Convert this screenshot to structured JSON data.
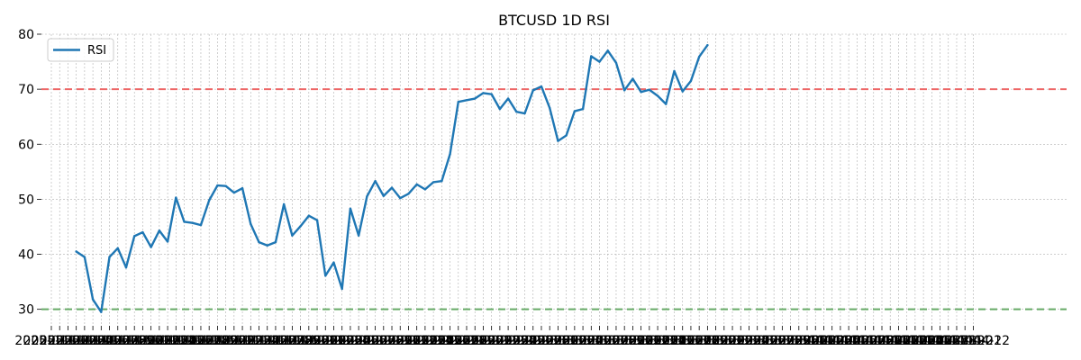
{
  "chart_data": {
    "type": "line",
    "title": "BTCUSD 1D RSI",
    "xlabel": "",
    "ylabel": "",
    "ylim": [
      27,
      80
    ],
    "yticks": [
      30,
      40,
      50,
      60,
      70,
      80
    ],
    "x_tick_labels": [
      "2025-01-01",
      "2025-01-02",
      "2025-01-03",
      "2025-01-04",
      "2025-01-05",
      "2025-01-06",
      "2025-01-07",
      "2025-01-08",
      "2025-01-09",
      "2025-01-10",
      "2025-01-11",
      "2025-01-12",
      "2025-01-13",
      "2025-01-14",
      "2025-01-15",
      "2025-01-16",
      "2025-01-17",
      "2025-01-18",
      "2025-01-19",
      "2025-01-20",
      "2025-01-21",
      "2025-01-22",
      "2025-01-23",
      "2025-01-24",
      "2025-01-25",
      "2025-01-26",
      "2025-01-27",
      "2025-01-28",
      "2025-01-29",
      "2025-01-30",
      "2025-01-31",
      "2025-02-01",
      "2025-02-02",
      "2025-02-03",
      "2025-02-04",
      "2025-02-05",
      "2025-02-06",
      "2025-02-07",
      "2025-02-08",
      "2025-02-09",
      "2025-02-10",
      "2025-02-11",
      "2025-02-12",
      "2025-02-13",
      "2025-02-14",
      "2025-02-15",
      "2025-02-16",
      "2025-02-17",
      "2025-02-18",
      "2025-02-19",
      "2025-02-20",
      "2025-02-21",
      "2025-02-22",
      "2025-02-23",
      "2025-02-24",
      "2025-02-25",
      "2025-02-26",
      "2025-02-27",
      "2025-02-28",
      "2025-03-01",
      "2025-03-02",
      "2025-03-03",
      "2025-03-04",
      "2025-03-05",
      "2025-03-06",
      "2025-03-07",
      "2025-03-08",
      "2025-03-09",
      "2025-03-10",
      "2025-03-11",
      "2025-03-12",
      "2025-03-13",
      "2025-03-14",
      "2025-03-15",
      "2025-03-16",
      "2025-03-17",
      "2025-03-18",
      "2025-03-19",
      "2025-03-20",
      "2025-03-21",
      "2025-03-22",
      "2025-03-23",
      "2025-03-24",
      "2025-03-25",
      "2025-03-26",
      "2025-03-27",
      "2025-03-28",
      "2025-03-29",
      "2025-03-30",
      "2025-03-31",
      "2025-04-01",
      "2025-04-02",
      "2025-04-03",
      "2025-04-04",
      "2025-04-05",
      "2025-04-06",
      "2025-04-07",
      "2025-04-08",
      "2025-04-09",
      "2025-04-10",
      "2025-04-11",
      "2025-04-12",
      "2025-04-13",
      "2025-04-14",
      "2025-04-15",
      "2025-04-16",
      "2025-04-17",
      "2025-04-18",
      "2025-04-19",
      "2025-04-20",
      "2025-04-21",
      "2025-04-22"
    ],
    "legend": {
      "label": "RSI",
      "placement": "upper-left"
    },
    "grid": true,
    "series": [
      {
        "name": "RSI",
        "color": "#1f77b4",
        "start_index": 3,
        "values": [
          40.5,
          39.5,
          31.8,
          29.5,
          39.5,
          41.1,
          37.6,
          43.3,
          44.0,
          41.3,
          44.3,
          42.3,
          50.3,
          45.9,
          45.7,
          45.3,
          49.8,
          52.5,
          52.4,
          51.2,
          52.0,
          45.5,
          42.2,
          41.6,
          42.2,
          49.1,
          43.4,
          45.1,
          47.0,
          46.2,
          36.1,
          38.5,
          33.7,
          48.3,
          43.4,
          50.5,
          53.3,
          50.6,
          52.1,
          50.2,
          51.0,
          52.7,
          51.8,
          53.1,
          53.3,
          58.2,
          67.7,
          68.0,
          68.3,
          69.3,
          69.1,
          66.4,
          68.3,
          65.9,
          65.6,
          69.8,
          70.5,
          66.6,
          60.6,
          61.6,
          66.0,
          66.4,
          76.0,
          75.0,
          77.0,
          74.8,
          69.8,
          71.9,
          69.5,
          69.9,
          68.8,
          67.3,
          73.3,
          69.6,
          71.5,
          75.9,
          78.0
        ]
      }
    ],
    "reference_lines": [
      {
        "value": 70,
        "color": "#ee6666",
        "style": "dashed"
      },
      {
        "value": 30,
        "color": "#66aa66",
        "style": "dashed"
      }
    ]
  }
}
